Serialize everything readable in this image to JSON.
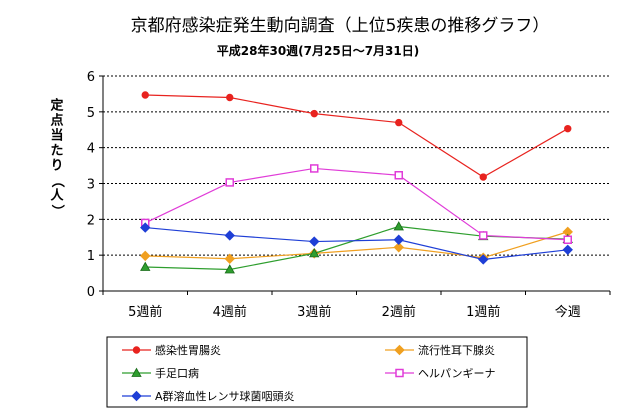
{
  "chart_data": {
    "type": "line",
    "title": "京都府感染症発生動向調査（上位5疾患の推移グラフ）",
    "subtitle": "平成28年30週(7月25日～7月31日)",
    "ylabel": "定点当たり（人）",
    "xlabel": "",
    "categories": [
      "5週前",
      "4週前",
      "3週前",
      "2週前",
      "1週前",
      "今週"
    ],
    "ylim": [
      0,
      6
    ],
    "yticks": [
      "0",
      "1",
      "2",
      "3",
      "4",
      "5",
      "6"
    ],
    "grid": "horizontal dashed",
    "legend_position": "bottom",
    "series": [
      {
        "name": "感染性胃腸炎",
        "color": "#e8231f",
        "marker": "circle",
        "values": [
          5.47,
          5.4,
          4.95,
          4.7,
          3.18,
          4.53
        ]
      },
      {
        "name": "流行性耳下腺炎",
        "color": "#f0a020",
        "marker": "diamond",
        "values": [
          0.98,
          0.9,
          1.05,
          1.22,
          0.93,
          1.65
        ]
      },
      {
        "name": "手足口病",
        "color": "#2e9e2e",
        "marker": "triangle",
        "values": [
          0.67,
          0.6,
          1.05,
          1.8,
          1.53,
          1.45
        ]
      },
      {
        "name": "ヘルパンギーナ",
        "color": "#e03cd8",
        "marker": "square",
        "values": [
          1.9,
          3.03,
          3.42,
          3.23,
          1.55,
          1.43
        ]
      },
      {
        "name": "A群溶血性レンサ球菌咽頭炎",
        "color": "#1f3fd6",
        "marker": "diamond",
        "values": [
          1.77,
          1.55,
          1.38,
          1.43,
          0.88,
          1.15
        ]
      }
    ]
  }
}
